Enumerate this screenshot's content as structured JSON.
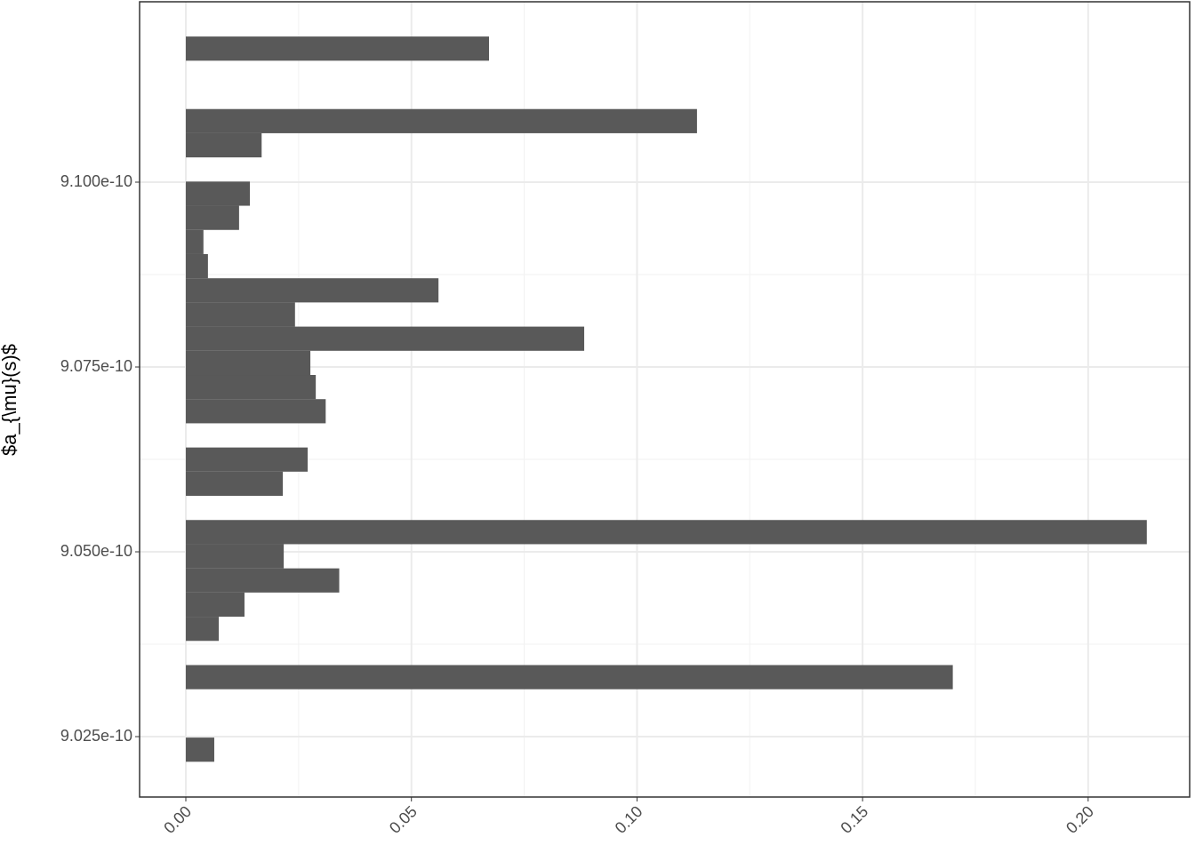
{
  "chart_data": {
    "type": "histogram",
    "orientation": "horizontal",
    "y_label": "$a_{\\mu}(s)$",
    "bins": [
      9.0216e-10,
      9.02487e-10,
      9.02814e-10,
      9.03141e-10,
      9.03468e-10,
      9.03795e-10,
      9.04122e-10,
      9.04449e-10,
      9.04776e-10,
      9.05103e-10,
      9.0543e-10,
      9.05757e-10,
      9.06084e-10,
      9.06411e-10,
      9.06738e-10,
      9.07065e-10,
      9.07392e-10,
      9.07719e-10,
      9.08046e-10,
      9.08373e-10,
      9.087e-10,
      9.09027e-10,
      9.09354e-10,
      9.09681e-10,
      9.10008e-10,
      9.10335e-10,
      9.10662e-10,
      9.10989e-10,
      9.11316e-10,
      9.11643e-10,
      9.1197e-10
    ],
    "values": [
      0.0063,
      0,
      0,
      0.17,
      0,
      0.0073,
      0.013,
      0.034,
      0.0217,
      0.213,
      0,
      0.0215,
      0.027,
      0,
      0.031,
      0.0288,
      0.0276,
      0.0883,
      0.0242,
      0.056,
      0.0049,
      0.0039,
      0.0118,
      0.0142,
      0,
      0.0168,
      0.1133,
      0,
      0,
      0.0672
    ],
    "color": "#595959",
    "xlim": [
      -0.01025,
      0.2225
    ],
    "xticks": [
      {
        "value": 0,
        "label": "0.00"
      },
      {
        "value": 0.05,
        "label": "0.05"
      },
      {
        "value": 0.1,
        "label": "0.10"
      },
      {
        "value": 0.15,
        "label": "0.15"
      },
      {
        "value": 0.2,
        "label": "0.20"
      }
    ],
    "ylim": [
      9.01683e-10,
      9.1244e-10
    ],
    "yticks": [
      {
        "value": 9.025e-10,
        "label": "9.025e-10"
      },
      {
        "value": 9.05e-10,
        "label": "9.050e-10"
      },
      {
        "value": 9.075e-10,
        "label": "9.075e-10"
      },
      {
        "value": 9.1e-10,
        "label": "9.100e-10"
      }
    ],
    "grid": true
  }
}
